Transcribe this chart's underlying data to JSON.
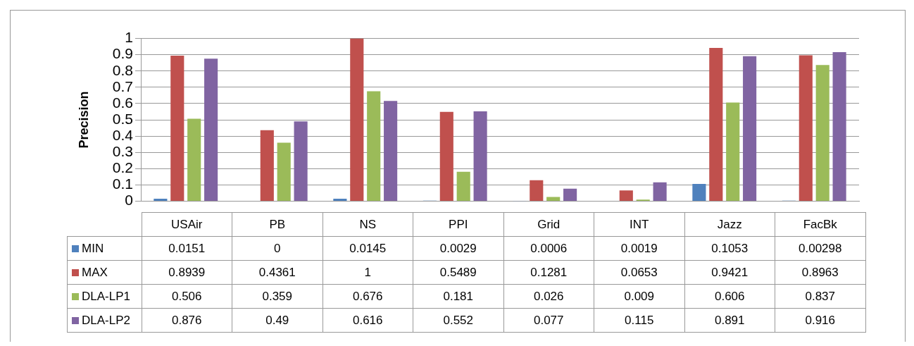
{
  "chart_data": {
    "type": "bar",
    "ylabel": "Precision",
    "categories": [
      "USAir",
      "PB",
      "NS",
      "PPI",
      "Grid",
      "INT",
      "Jazz",
      "FacBk"
    ],
    "series": [
      {
        "name": "MIN",
        "color": "#4f81bd",
        "values": [
          0.0151,
          0,
          0.0145,
          0.0029,
          0.0006,
          0.0019,
          0.1053,
          0.00298
        ]
      },
      {
        "name": "MAX",
        "color": "#c0504d",
        "values": [
          0.8939,
          0.4361,
          1,
          0.5489,
          0.1281,
          0.0653,
          0.9421,
          0.8963
        ]
      },
      {
        "name": "DLA-LP1",
        "color": "#9bbb59",
        "values": [
          0.506,
          0.359,
          0.676,
          0.181,
          0.026,
          0.009,
          0.606,
          0.837
        ]
      },
      {
        "name": "DLA-LP2",
        "color": "#8064a2",
        "values": [
          0.876,
          0.49,
          0.616,
          0.552,
          0.077,
          0.115,
          0.891,
          0.916
        ]
      }
    ],
    "ylim": [
      0,
      1
    ],
    "yticks": [
      0,
      0.1,
      0.2,
      0.3,
      0.4,
      0.5,
      0.6,
      0.7,
      0.8,
      0.9,
      1
    ],
    "grid": "y",
    "legend": "bottom",
    "data_labels": true
  }
}
